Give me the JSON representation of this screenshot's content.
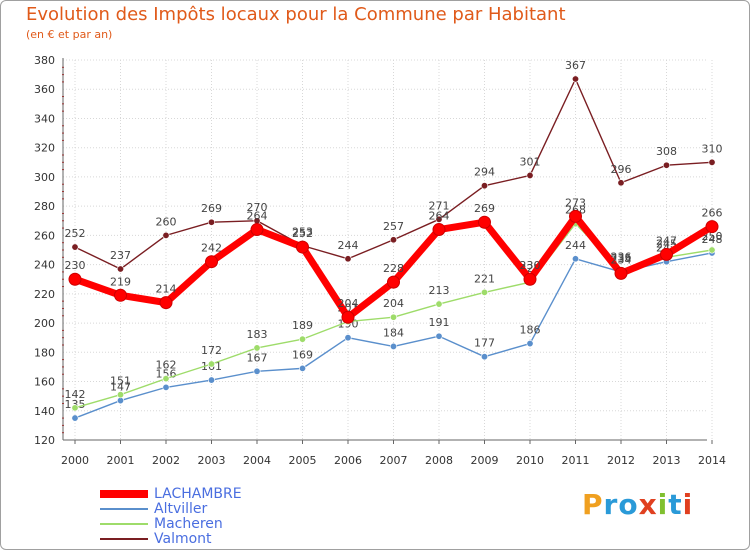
{
  "title": "Evolution des Impôts locaux pour la Commune par Habitant",
  "subtitle": "(en € et par an)",
  "chart_data": {
    "type": "line",
    "categories": [
      "2000",
      "2001",
      "2002",
      "2003",
      "2004",
      "2005",
      "2006",
      "2007",
      "2008",
      "2009",
      "2010",
      "2011",
      "2012",
      "2013",
      "2014"
    ],
    "ylim": [
      120,
      380
    ],
    "yticks": [
      120,
      140,
      160,
      180,
      200,
      220,
      240,
      260,
      280,
      300,
      320,
      340,
      360,
      380
    ],
    "series": [
      {
        "name": "Valmont",
        "color": "#7a1e22",
        "values": [
          252,
          237,
          260,
          269,
          270,
          253,
          244,
          257,
          271,
          294,
          301,
          367,
          296,
          308,
          310
        ]
      },
      {
        "name": "Altviller",
        "color": "#5a8fcc",
        "values": [
          135,
          147,
          156,
          161,
          167,
          169,
          190,
          184,
          191,
          177,
          186,
          244,
          235,
          242,
          248
        ]
      },
      {
        "name": "Macheren",
        "color": "#9edc6a",
        "values": [
          142,
          151,
          162,
          172,
          183,
          189,
          201,
          204,
          213,
          221,
          228,
          268,
          236,
          245,
          250
        ]
      },
      {
        "name": "LACHAMBRE",
        "color": "#ff0000",
        "values": [
          230,
          219,
          214,
          242,
          264,
          252,
          204,
          228,
          264,
          269,
          230,
          273,
          234,
          247,
          266
        ]
      }
    ]
  },
  "legend": [
    "LACHAMBRE",
    "Altviller",
    "Macheren",
    "Valmont"
  ],
  "logo": {
    "letters": [
      "P",
      "r",
      "o",
      "x",
      "i",
      "t",
      "i"
    ],
    "colors": [
      "#f0a020",
      "#2a9ad8",
      "#2a9ad8",
      "#e04020",
      "#80c030",
      "#2a9ad8",
      "#e04020"
    ]
  }
}
